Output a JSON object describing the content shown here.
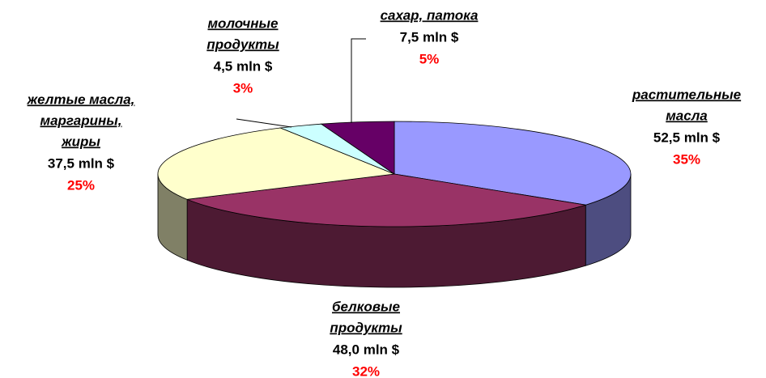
{
  "chart_data": {
    "type": "pie",
    "categories": [
      [
        "растительные",
        "масла"
      ],
      [
        "белковые",
        "продукты"
      ],
      [
        "желтые масла,",
        "маргарины,",
        "жиры"
      ],
      [
        "молочные",
        "продукты"
      ],
      [
        "сахар, патока"
      ]
    ],
    "values": [
      35,
      32,
      25,
      3,
      5
    ],
    "value_labels": [
      "35%",
      "32%",
      "25%",
      "3%",
      "5%"
    ],
    "amounts": [
      52.5,
      48.0,
      37.5,
      4.5,
      7.5
    ],
    "amount_labels": [
      "52,5 mln $",
      "48,0 mln $",
      "37,5 mln $",
      "4,5 mln $",
      "7,5 mln $"
    ],
    "colors": [
      "#9999ff",
      "#993366",
      "#ffffcc",
      "#ccffff",
      "#660066"
    ],
    "three_d": true
  }
}
